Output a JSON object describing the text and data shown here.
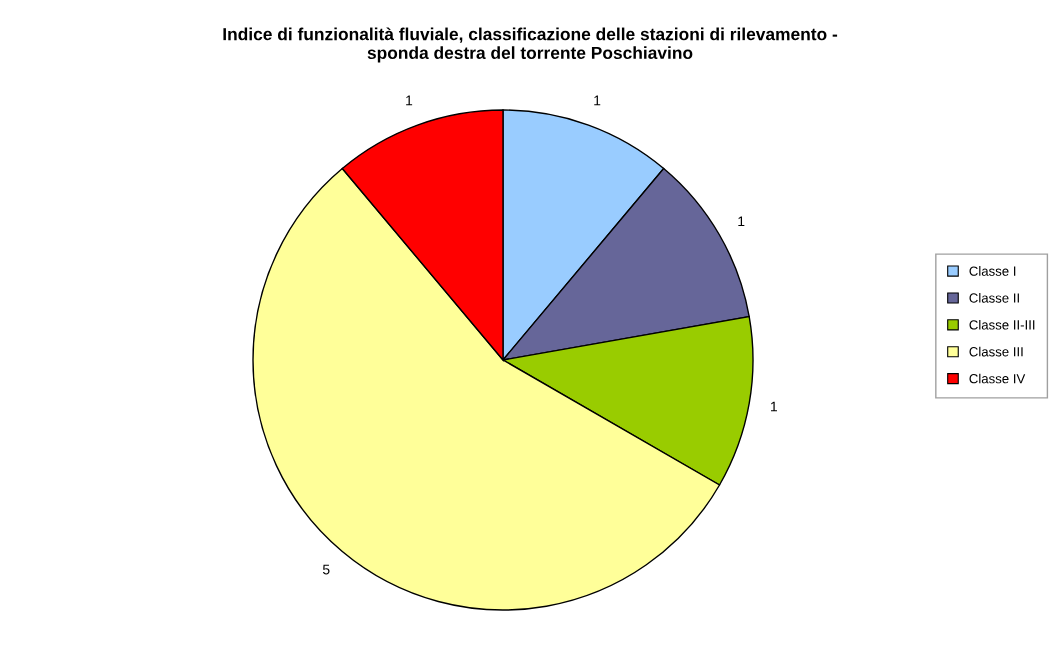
{
  "chart_data": {
    "type": "pie",
    "title": "Indice di funzionalità fluviale, classificazione delle stazioni di rilevamento -\nsponda destra del torrente Poschiavino",
    "categories": [
      "Classe I",
      "Classe II",
      "Classe II-III",
      "Classe III",
      "Classe IV"
    ],
    "values": [
      1,
      1,
      1,
      5,
      1
    ],
    "colors": [
      "#99ccff",
      "#666699",
      "#99cc00",
      "#ffff99",
      "#ff0000"
    ],
    "data_labels": true,
    "legend": "right"
  }
}
